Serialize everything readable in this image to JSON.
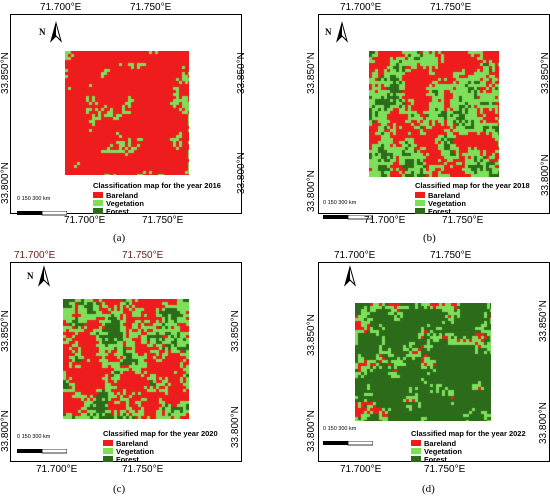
{
  "colors": {
    "bareland": "#ee1c1c",
    "vegetation": "#7ee05a",
    "forest": "#2b6b1a"
  },
  "shared": {
    "north_label": "N",
    "lon1": "71.700°E",
    "lon2": "71.750°E",
    "lat1": "33.850°N",
    "lat2": "33.800°N",
    "scale_text": "0      150    300 km",
    "legend_bareland": "Bareland",
    "legend_vegetation": "Vegetation",
    "legend_forest": "Forest"
  },
  "panels": [
    {
      "title": "Classification map for the year 2016",
      "caption": "(a)",
      "forest_share": 0.08,
      "veg_share": 0.2
    },
    {
      "title": "Classified map for the year 2018",
      "caption": "(b)",
      "forest_share": 0.3,
      "veg_share": 0.22
    },
    {
      "title": "Classified map for the year 2020",
      "caption": "(c)",
      "forest_share": 0.35,
      "veg_share": 0.2
    },
    {
      "title": "Classified map for the year 2022",
      "caption": "(d)",
      "forest_share": 0.6,
      "veg_share": 0.15
    }
  ]
}
